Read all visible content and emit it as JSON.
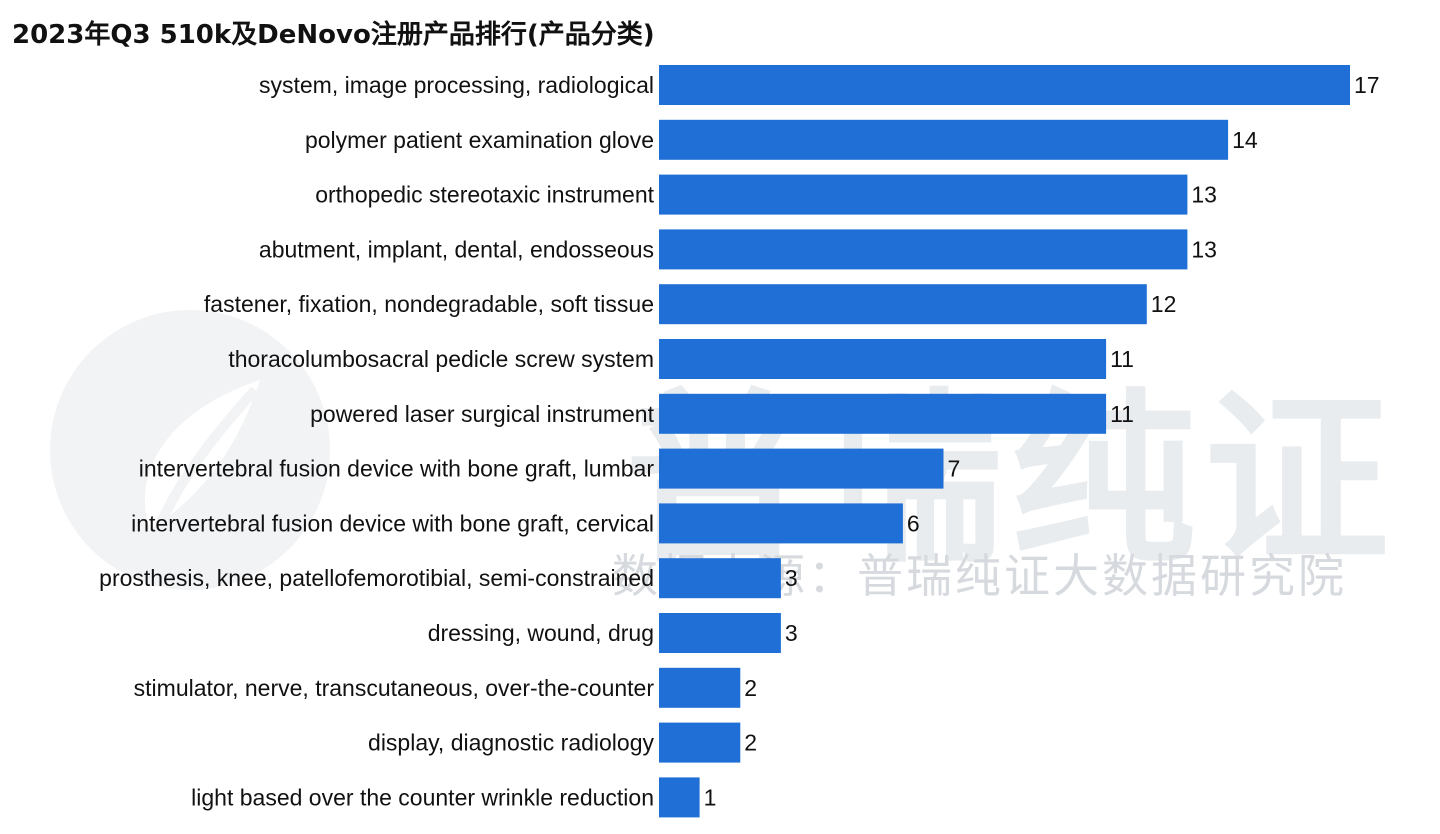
{
  "title": "2023年Q3 510k及DeNovo注册产品排行(产品分类)",
  "watermark": {
    "brand": "普瑞纯证",
    "source": "数据来源：普瑞纯证大数据研究院"
  },
  "colors": {
    "bar": "#1f6fd6",
    "text": "#111111",
    "watermark": "#e9ecef"
  },
  "chart_data": {
    "type": "bar",
    "orientation": "horizontal",
    "title": "2023年Q3 510k及DeNovo注册产品排行(产品分类)",
    "xlabel": "",
    "ylabel": "",
    "grid": false,
    "legend": "none",
    "xlim": [
      0,
      17
    ],
    "categories": [
      "system, image processing, radiological",
      "polymer patient examination glove",
      "orthopedic stereotaxic instrument",
      "abutment, implant, dental, endosseous",
      "fastener, fixation, nondegradable, soft tissue",
      "thoracolumbosacral pedicle screw system",
      "powered laser surgical instrument",
      "intervertebral fusion device with bone graft, lumbar",
      "intervertebral fusion device with bone graft, cervical",
      "prosthesis, knee, patellofemorotibial, semi-constrained",
      "dressing, wound, drug",
      "stimulator, nerve, transcutaneous, over-the-counter",
      "display, diagnostic radiology",
      "light based over the counter wrinkle reduction"
    ],
    "values": [
      17,
      14,
      13,
      13,
      12,
      11,
      11,
      7,
      6,
      3,
      3,
      2,
      2,
      1
    ]
  }
}
